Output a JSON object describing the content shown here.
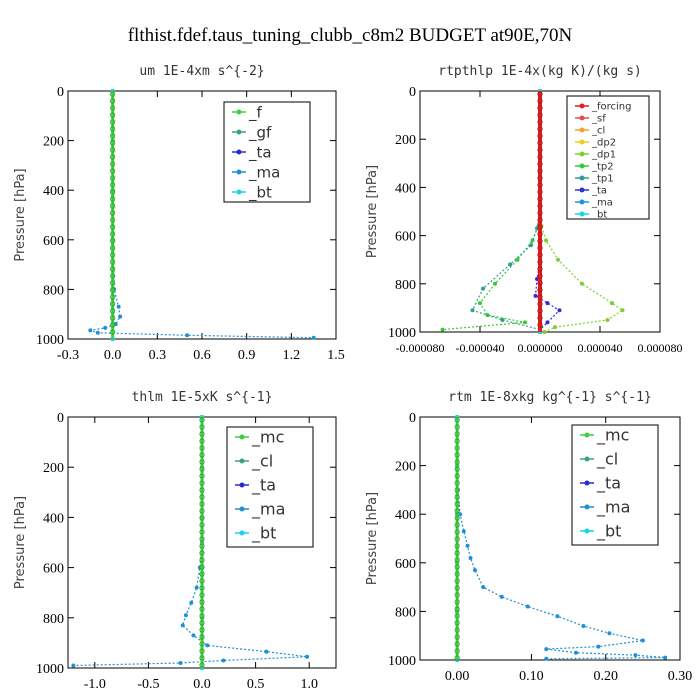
{
  "figure_title": "flthist.fdef.taus_tuning_clubb_c8m2  BUDGET at90E,70N",
  "chart_data": [
    {
      "type": "line",
      "title": "um  1E-4xm s^{-2}",
      "ylabel": "Pressure [hPa]",
      "xlim": [
        -0.3,
        1.5
      ],
      "xticks": [
        "-0.3",
        "0.0",
        "0.3",
        "0.6",
        "0.9",
        "1.2",
        "1.5"
      ],
      "ylim": [
        1000,
        0
      ],
      "yticks": [
        "0",
        "200",
        "400",
        "600",
        "800",
        "1000"
      ],
      "legend_position": "top-right",
      "series": [
        {
          "name": "_f",
          "color": "#3ecf3e",
          "x": [
            0,
            0,
            0,
            0,
            0,
            0
          ],
          "y": [
            0,
            200,
            400,
            600,
            800,
            1000
          ]
        },
        {
          "name": "_gf",
          "color": "#3aa37a",
          "x": [
            0,
            0,
            0,
            0,
            0,
            0
          ],
          "y": [
            0,
            200,
            400,
            600,
            800,
            1000
          ]
        },
        {
          "name": "_ta",
          "color": "#2a2ad0",
          "x": [
            0,
            0,
            0,
            0,
            0,
            0
          ],
          "y": [
            0,
            200,
            400,
            600,
            800,
            1000
          ]
        },
        {
          "name": "_ma",
          "color": "#1f8fd6",
          "x": [
            0,
            0,
            0.01,
            0.04,
            0.05,
            0.02,
            -0.05,
            -0.15,
            -0.1,
            0.5,
            1.35
          ],
          "y": [
            0,
            400,
            800,
            870,
            910,
            940,
            955,
            965,
            975,
            985,
            995
          ]
        },
        {
          "name": "_bt",
          "color": "#19d3e8",
          "x": [
            0,
            0,
            0,
            0,
            0,
            0
          ],
          "y": [
            0,
            200,
            400,
            600,
            800,
            1000
          ]
        }
      ]
    },
    {
      "type": "line",
      "title": "rtpthlp  1E-4x(kg K)/(kg s)",
      "ylabel": "Pressure [hPa]",
      "xlim": [
        -8e-05,
        8e-05
      ],
      "xticks": [
        "-0.000080",
        "-0.000040",
        "0.000000",
        "0.000040",
        "0.000080"
      ],
      "ylim": [
        1000,
        0
      ],
      "yticks": [
        "0",
        "200",
        "400",
        "600",
        "800",
        "1000"
      ],
      "legend_position": "top-right",
      "series": [
        {
          "name": "_forcing",
          "color": "#e02020",
          "x": [
            0,
            0,
            0,
            0,
            0,
            0
          ],
          "y": [
            0,
            200,
            400,
            600,
            800,
            1000
          ]
        },
        {
          "name": "_sf",
          "color": "#e05050",
          "x": [
            0,
            0,
            0,
            0,
            0,
            0
          ],
          "y": [
            0,
            200,
            400,
            600,
            800,
            1000
          ]
        },
        {
          "name": "_cl",
          "color": "#f0a030",
          "x": [
            0,
            0,
            0,
            0,
            0,
            0
          ],
          "y": [
            0,
            200,
            400,
            600,
            800,
            1000
          ]
        },
        {
          "name": "_dp2",
          "color": "#e8d020",
          "x": [
            0,
            0,
            0,
            0,
            0,
            0
          ],
          "y": [
            0,
            200,
            400,
            600,
            800,
            1000
          ]
        },
        {
          "name": "_dp1",
          "color": "#7ad030",
          "x": [
            0,
            0,
            1e-06,
            4e-06,
            1.2e-05,
            2.8e-05,
            4.8e-05,
            5.5e-05,
            4.5e-05,
            1e-05,
            3e-06
          ],
          "y": [
            0,
            500,
            560,
            620,
            700,
            800,
            880,
            910,
            950,
            980,
            1000
          ]
        },
        {
          "name": "_tp2",
          "color": "#33cc33",
          "x": [
            0,
            0,
            -1e-06,
            -5e-06,
            -1.5e-05,
            -3e-05,
            -4e-05,
            -3.5e-05,
            -1e-05,
            -6.5e-05
          ],
          "y": [
            0,
            500,
            560,
            620,
            700,
            800,
            880,
            930,
            960,
            990
          ]
        },
        {
          "name": "_tp1",
          "color": "#2e9e8e",
          "x": [
            0,
            0,
            -2e-06,
            -6e-06,
            -2e-05,
            -3.8e-05,
            -4.5e-05,
            -2.5e-05,
            0
          ],
          "y": [
            0,
            500,
            570,
            640,
            720,
            820,
            910,
            950,
            990
          ]
        },
        {
          "name": "_ta",
          "color": "#3030d0",
          "x": [
            0,
            0,
            -2e-06,
            -3e-06,
            5e-06,
            1.3e-05,
            5e-06,
            0
          ],
          "y": [
            0,
            700,
            780,
            850,
            880,
            910,
            960,
            990
          ]
        },
        {
          "name": "_ma",
          "color": "#2090e0",
          "x": [
            0,
            0,
            0,
            0,
            0,
            0
          ],
          "y": [
            0,
            200,
            400,
            600,
            800,
            1000
          ]
        },
        {
          "name": "_bt",
          "color": "#19d3e8",
          "x": [
            0,
            0,
            0,
            0,
            0,
            0
          ],
          "y": [
            0,
            200,
            400,
            600,
            800,
            1000
          ]
        }
      ]
    },
    {
      "type": "line",
      "title": "thlm  1E-5xK s^{-1}",
      "ylabel": "Pressure [hPa]",
      "xlim": [
        -1.25,
        1.25
      ],
      "xticks": [
        "-1.0",
        "-0.5",
        "0.0",
        "0.5",
        "1.0"
      ],
      "ylim": [
        1000,
        0
      ],
      "yticks": [
        "0",
        "200",
        "400",
        "600",
        "800",
        "1000"
      ],
      "legend_position": "top-right",
      "series": [
        {
          "name": "_mc",
          "color": "#3ecf3e",
          "x": [
            0,
            0,
            0,
            0,
            0,
            0
          ],
          "y": [
            0,
            200,
            400,
            600,
            800,
            1000
          ]
        },
        {
          "name": "_cl",
          "color": "#3aa37a",
          "x": [
            0,
            0,
            0,
            0,
            0,
            0
          ],
          "y": [
            0,
            200,
            400,
            600,
            800,
            1000
          ]
        },
        {
          "name": "_ta",
          "color": "#2a2ad0",
          "x": [
            0,
            0,
            0,
            0,
            0,
            0
          ],
          "y": [
            0,
            200,
            400,
            600,
            800,
            1000
          ]
        },
        {
          "name": "_ma",
          "color": "#1f8fd6",
          "x": [
            0,
            0,
            -0.02,
            -0.05,
            -0.1,
            -0.15,
            -0.18,
            -0.08,
            0.05,
            0.6,
            0.98,
            0.2,
            -0.2,
            -1.2
          ],
          "y": [
            0,
            500,
            600,
            680,
            740,
            790,
            830,
            870,
            910,
            935,
            955,
            970,
            980,
            990
          ]
        },
        {
          "name": "_bt",
          "color": "#19d3e8",
          "x": [
            0,
            0,
            0,
            0,
            0,
            0
          ],
          "y": [
            0,
            200,
            400,
            600,
            800,
            1000
          ]
        }
      ]
    },
    {
      "type": "line",
      "title": "rtm  1E-8xkg kg^{-1} s^{-1}",
      "ylabel": "Pressure [hPa]",
      "xlim": [
        -0.05,
        0.3
      ],
      "xticks": [
        "0.00",
        "0.10",
        "0.20",
        "0.30"
      ],
      "ylim": [
        1000,
        0
      ],
      "yticks": [
        "0",
        "200",
        "400",
        "600",
        "800",
        "1000"
      ],
      "legend_position": "top-right",
      "series": [
        {
          "name": "_mc",
          "color": "#3ecf3e",
          "x": [
            0,
            0,
            0,
            0,
            0,
            0
          ],
          "y": [
            0,
            200,
            400,
            600,
            800,
            1000
          ]
        },
        {
          "name": "_cl",
          "color": "#3aa37a",
          "x": [
            0,
            0,
            0,
            0,
            0,
            0
          ],
          "y": [
            0,
            200,
            400,
            600,
            800,
            1000
          ]
        },
        {
          "name": "_ta",
          "color": "#2a2ad0",
          "x": [
            0,
            0,
            0,
            0,
            0,
            0
          ],
          "y": [
            0,
            200,
            400,
            600,
            800,
            1000
          ]
        },
        {
          "name": "_ma",
          "color": "#1f8fd6",
          "x": [
            0,
            0.001,
            0.004,
            0.009,
            0.014,
            0.018,
            0.024,
            0.035,
            0.06,
            0.095,
            0.135,
            0.17,
            0.205,
            0.25,
            0.19,
            0.12,
            0.16,
            0.24,
            0.28,
            0.12
          ],
          "y": [
            0,
            300,
            400,
            470,
            530,
            580,
            630,
            700,
            740,
            780,
            820,
            860,
            890,
            920,
            945,
            955,
            970,
            980,
            990,
            995
          ]
        },
        {
          "name": "_bt",
          "color": "#19d3e8",
          "x": [
            0,
            0,
            0,
            0,
            0,
            0
          ],
          "y": [
            0,
            200,
            400,
            600,
            800,
            1000
          ]
        }
      ]
    }
  ]
}
